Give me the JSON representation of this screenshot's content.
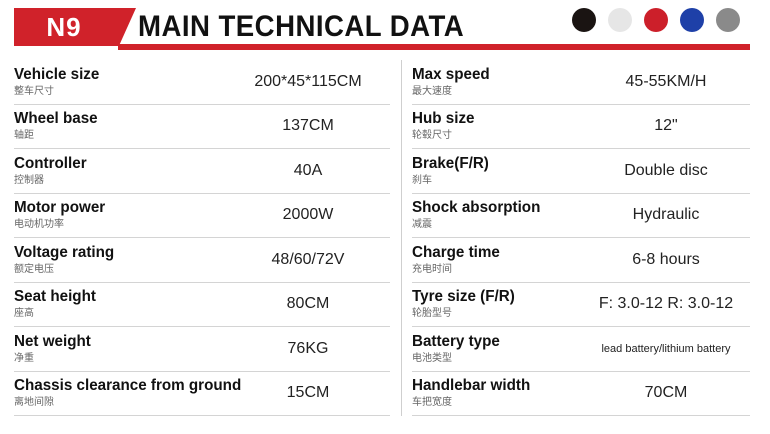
{
  "header": {
    "model": "N9",
    "title": "MAIN TECHNICAL DATA",
    "colors": [
      "#1a1412",
      "#e6e6e6",
      "#cc1f2a",
      "#1e40a8",
      "#8a8a8a"
    ]
  },
  "left_specs": [
    {
      "label": "Vehicle size",
      "label_cn": "整车尺寸",
      "value": "200*45*115CM"
    },
    {
      "label": "Wheel base",
      "label_cn": "轴距",
      "value": "137CM"
    },
    {
      "label": "Controller",
      "label_cn": "控制器",
      "value": "40A"
    },
    {
      "label": "Motor power",
      "label_cn": "电动机功率",
      "value": "2000W"
    },
    {
      "label": "Voltage rating",
      "label_cn": "额定电压",
      "value": "48/60/72V"
    },
    {
      "label": "Seat height",
      "label_cn": "座高",
      "value": "80CM"
    },
    {
      "label": "Net weight",
      "label_cn": "净重",
      "value": "76KG"
    },
    {
      "label": "Chassis clearance from ground",
      "label_cn": "离地间隙",
      "value": "15CM"
    }
  ],
  "right_specs": [
    {
      "label": "Max speed",
      "label_cn": "最大速度",
      "value": "45-55KM/H"
    },
    {
      "label": "Hub size",
      "label_cn": "轮毂尺寸",
      "value": "12\""
    },
    {
      "label": "Brake(F/R)",
      "label_cn": "刹车",
      "value": "Double disc"
    },
    {
      "label": "Shock absorption",
      "label_cn": "减震",
      "value": "Hydraulic"
    },
    {
      "label": "Charge time",
      "label_cn": "充电时间",
      "value": "6-8 hours"
    },
    {
      "label": "Tyre size (F/R)",
      "label_cn": "轮胎型号",
      "value": "F: 3.0-12 R: 3.0-12"
    },
    {
      "label": "Battery type",
      "label_cn": "电池类型",
      "value": "lead battery/lithium battery"
    },
    {
      "label": "Handlebar width",
      "label_cn": "车把宽度",
      "value": "70CM"
    }
  ]
}
